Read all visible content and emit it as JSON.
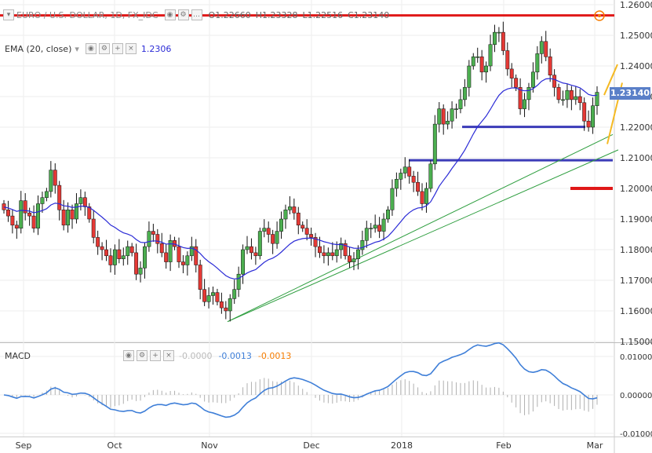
{
  "header": {
    "symbol": "EURO / U.S. DOLLAR, 1D, FX_IDC",
    "open": "O1.22660",
    "high": "H1.23328",
    "low": "L1.22516",
    "close": "C1.23140"
  },
  "ema": {
    "label": "EMA (20, close)",
    "value": "1.2306"
  },
  "macd": {
    "label": "MACD",
    "v1": "-0.0000",
    "v2": "-0.0013",
    "v3": "-0.0013"
  },
  "last_price": "1.23140",
  "colors": {
    "bull": "#4caf50",
    "bear": "#e53935",
    "ema": "#2b2bd6",
    "macd_line": "#3f7fd8",
    "red_level": "#e01818",
    "blue_level": "#3b3bb8",
    "trend": "#2e9e3f",
    "yellow": "#f5b922",
    "grid": "#eeeeee"
  },
  "chart_data": [
    {
      "type": "candlestick",
      "title": "EURO / U.S. DOLLAR, 1D, FX_IDC",
      "y_ticks": [
        "1.26000",
        "1.25000",
        "1.24000",
        "1.23000",
        "1.22000",
        "1.21000",
        "1.20000",
        "1.19000",
        "1.18000",
        "1.17000",
        "1.16000",
        "1.15000"
      ],
      "ylim": [
        1.149,
        1.2615
      ],
      "x_ticks": [
        "Sep",
        "Oct",
        "Nov",
        "Dec",
        "2018",
        "Feb",
        "Mar"
      ],
      "close_series": [
        1.193,
        1.191,
        1.188,
        1.187,
        1.196,
        1.192,
        1.191,
        1.187,
        1.195,
        1.197,
        1.199,
        1.206,
        1.201,
        1.193,
        1.188,
        1.193,
        1.19,
        1.195,
        1.197,
        1.194,
        1.19,
        1.184,
        1.181,
        1.18,
        1.178,
        1.175,
        1.18,
        1.177,
        1.178,
        1.181,
        1.179,
        1.172,
        1.174,
        1.181,
        1.186,
        1.185,
        1.182,
        1.179,
        1.176,
        1.183,
        1.181,
        1.176,
        1.175,
        1.178,
        1.181,
        1.175,
        1.167,
        1.163,
        1.165,
        1.166,
        1.163,
        1.161,
        1.16,
        1.164,
        1.167,
        1.172,
        1.18,
        1.181,
        1.179,
        1.178,
        1.186,
        1.187,
        1.185,
        1.182,
        1.186,
        1.19,
        1.193,
        1.194,
        1.192,
        1.188,
        1.187,
        1.185,
        1.184,
        1.181,
        1.179,
        1.178,
        1.179,
        1.178,
        1.18,
        1.182,
        1.178,
        1.176,
        1.177,
        1.18,
        1.183,
        1.187,
        1.187,
        1.188,
        1.186,
        1.19,
        1.193,
        1.2,
        1.203,
        1.205,
        1.207,
        1.204,
        1.202,
        1.199,
        1.195,
        1.2,
        1.208,
        1.221,
        1.226,
        1.221,
        1.222,
        1.226,
        1.226,
        1.229,
        1.233,
        1.24,
        1.243,
        1.243,
        1.238,
        1.24,
        1.247,
        1.251,
        1.251,
        1.245,
        1.239,
        1.236,
        1.233,
        1.226,
        1.229,
        1.233,
        1.238,
        1.244,
        1.248,
        1.243,
        1.237,
        1.233,
        1.229,
        1.229,
        1.232,
        1.229,
        1.23,
        1.228,
        1.222,
        1.22,
        1.227,
        1.2314
      ],
      "level_lines": [
        1.2565,
        1.2201,
        1.2092,
        1.2
      ],
      "ema_series": {
        "name": "EMA (20, close)",
        "last": 1.2306
      }
    },
    {
      "type": "line",
      "title": "MACD",
      "y_ticks": [
        "0.01000",
        "0.00000",
        "-0.01000"
      ],
      "ylim": [
        -0.0105,
        0.0125
      ],
      "series": [
        {
          "name": "MACD",
          "last": -0.0013
        }
      ]
    }
  ]
}
